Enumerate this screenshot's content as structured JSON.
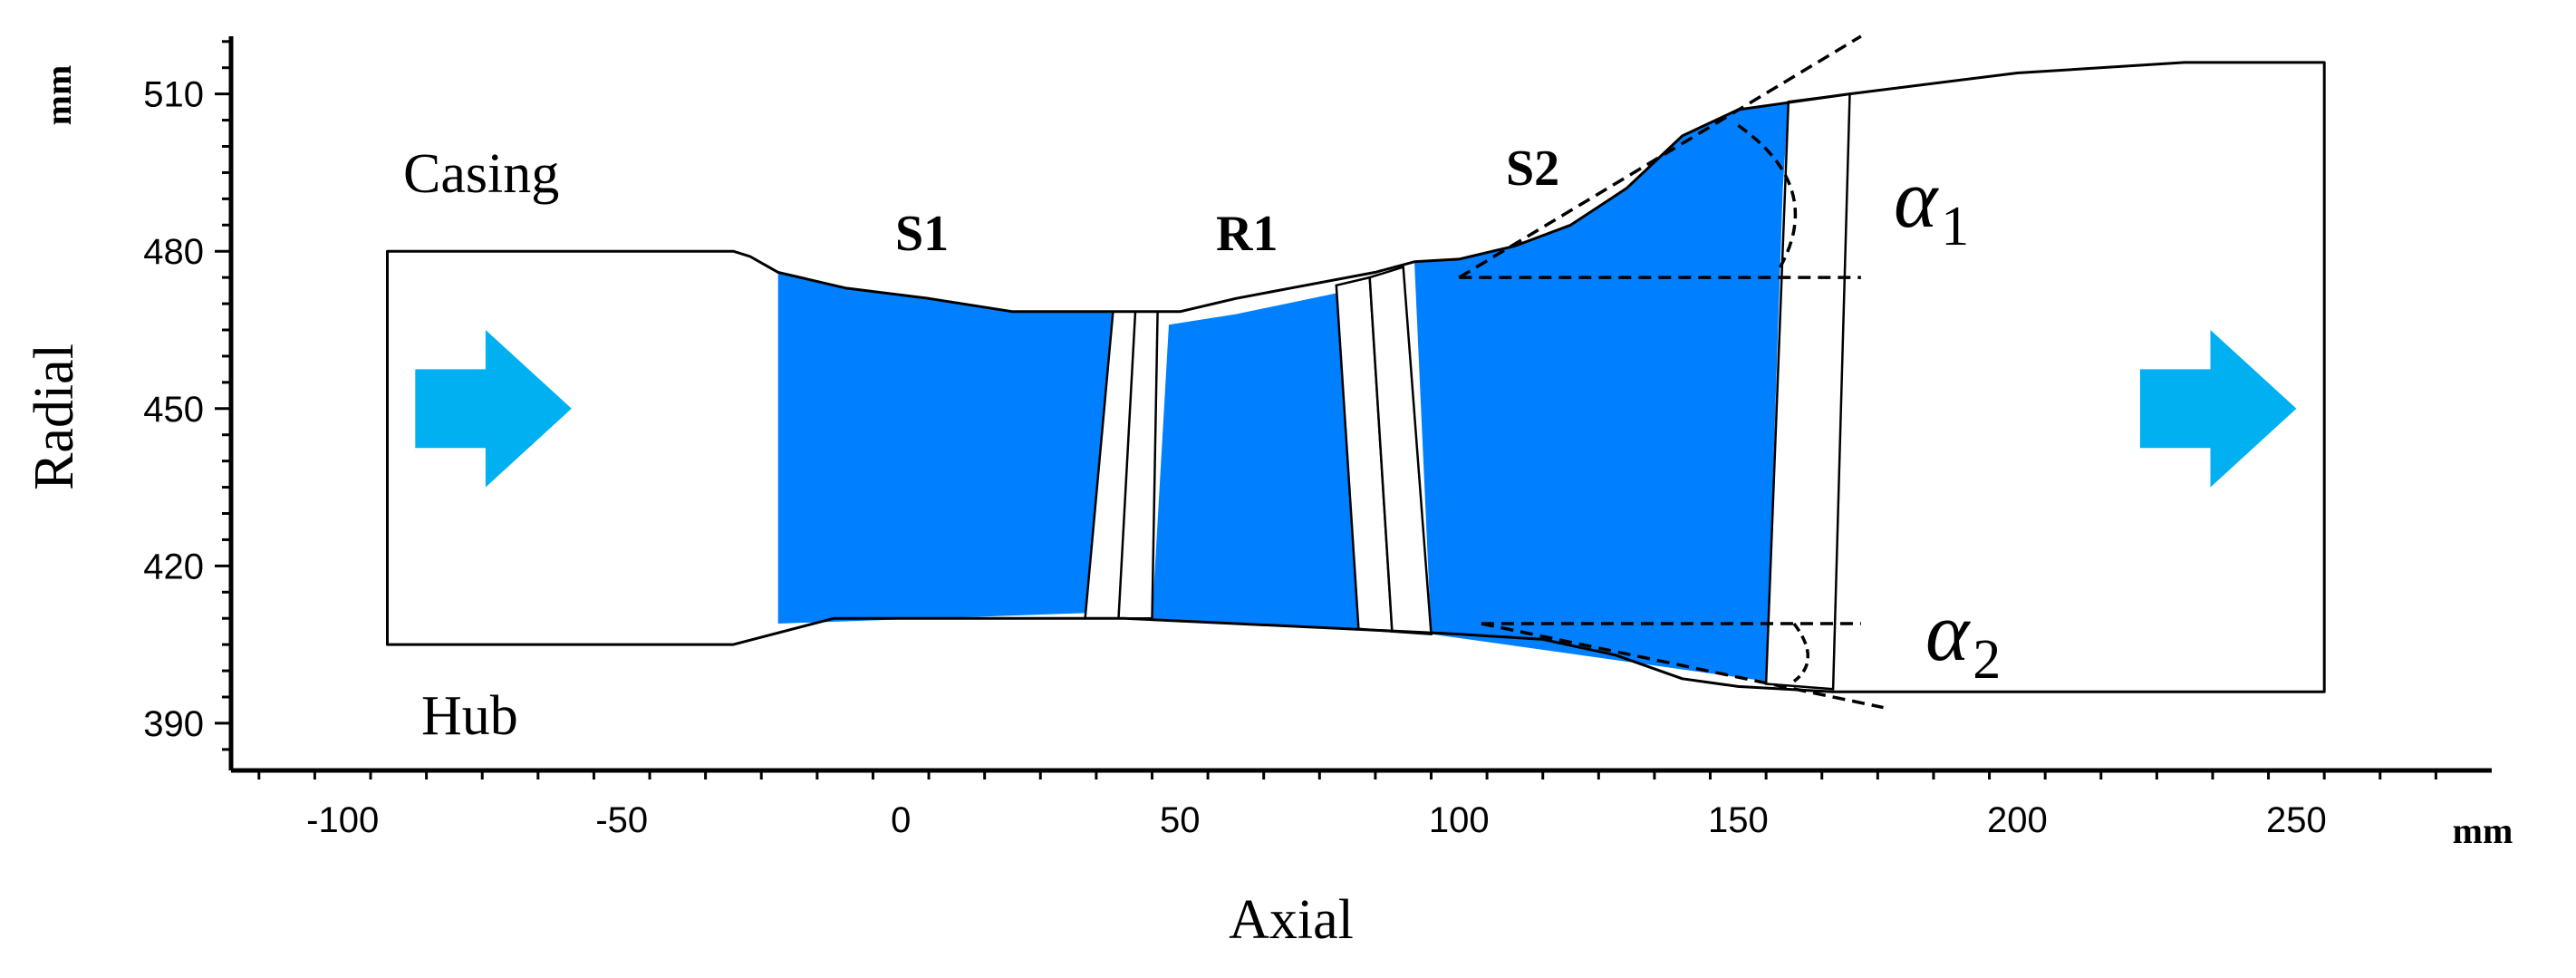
{
  "chart_data": {
    "type": "diagram",
    "xlabel": "Axial",
    "ylabel": "Radial",
    "x_unit": "mm",
    "y_unit": "mm",
    "xlim": [
      -120,
      285
    ],
    "ylim": [
      381,
      521
    ],
    "x_ticks": [
      -100,
      -50,
      0,
      50,
      100,
      150,
      200,
      250
    ],
    "y_ticks": [
      390,
      420,
      450,
      480,
      510
    ],
    "wall_labels": {
      "casing": "Casing",
      "hub": "Hub"
    },
    "region_labels": {
      "s1": "S1",
      "r1": "R1",
      "s2": "S2"
    },
    "angle_labels": {
      "alpha1": "α",
      "alpha1_sub": "1",
      "alpha2": "α",
      "alpha2_sub": "2"
    },
    "casing_line": [
      [
        -92,
        480
      ],
      [
        -30,
        480
      ],
      [
        -27,
        479
      ],
      [
        -22,
        476
      ],
      [
        -10,
        473
      ],
      [
        5,
        471
      ],
      [
        20,
        468.5
      ],
      [
        50,
        468.5
      ],
      [
        60,
        471
      ],
      [
        70,
        473
      ],
      [
        85,
        476
      ],
      [
        92,
        478
      ],
      [
        100,
        478.5
      ],
      [
        110,
        481
      ],
      [
        120,
        485
      ],
      [
        130,
        492
      ],
      [
        140,
        502
      ],
      [
        150,
        507
      ],
      [
        160,
        508.5
      ],
      [
        170,
        510
      ],
      [
        200,
        514
      ],
      [
        230,
        516
      ],
      [
        255,
        516
      ]
    ],
    "hub_line": [
      [
        255,
        396
      ],
      [
        167,
        396
      ],
      [
        150,
        397
      ],
      [
        140,
        398.5
      ],
      [
        128,
        403
      ],
      [
        115,
        406
      ],
      [
        100,
        407
      ],
      [
        80,
        408
      ],
      [
        60,
        409
      ],
      [
        40,
        410
      ],
      [
        -12,
        410
      ],
      [
        -30,
        405
      ],
      [
        -92,
        405
      ]
    ],
    "blue_regions": [
      [
        [
          -22,
          476
        ],
        [
          -10,
          473
        ],
        [
          5,
          471
        ],
        [
          20,
          468.5
        ],
        [
          38,
          468.5
        ],
        [
          33,
          411
        ],
        [
          -22,
          409
        ]
      ],
      [
        [
          48,
          466
        ],
        [
          60,
          468
        ],
        [
          78,
          472
        ],
        [
          82,
          408
        ],
        [
          45,
          410
        ]
      ],
      [
        [
          92,
          478
        ],
        [
          100,
          478.5
        ],
        [
          110,
          481
        ],
        [
          120,
          485
        ],
        [
          130,
          492
        ],
        [
          140,
          502
        ],
        [
          150,
          507
        ],
        [
          159,
          508.5
        ],
        [
          158,
          492
        ],
        [
          155,
          398
        ],
        [
          95,
          407
        ]
      ]
    ],
    "gaps": [
      [
        [
          38,
          468.5
        ],
        [
          43,
          468.5
        ],
        [
          39,
          410
        ],
        [
          33,
          410
        ]
      ],
      [
        [
          42,
          468.5
        ],
        [
          46,
          468.5
        ],
        [
          45,
          410
        ],
        [
          39,
          410
        ]
      ],
      [
        [
          78,
          473.5
        ],
        [
          84,
          475
        ],
        [
          88,
          407.5
        ],
        [
          82,
          408
        ]
      ],
      [
        [
          84,
          475
        ],
        [
          90,
          477
        ],
        [
          95,
          407
        ],
        [
          88,
          407.5
        ]
      ],
      [
        [
          159,
          508.5
        ],
        [
          170,
          510
        ],
        [
          167,
          396.5
        ],
        [
          155,
          397.5
        ]
      ]
    ],
    "dashed_lines": [
      [
        [
          100,
          475
        ],
        [
          172,
          475
        ]
      ],
      [
        [
          100,
          475
        ],
        [
          172,
          521
        ]
      ],
      [
        [
          104,
          409
        ],
        [
          172,
          409
        ]
      ],
      [
        [
          104,
          409
        ],
        [
          176,
          393
        ]
      ]
    ],
    "arrow_shapes": [
      {
        "x": [
          -87,
          -59
        ],
        "y": [
          442,
          458
        ],
        "color": "#00b0f0"
      },
      {
        "x": [
          222,
          250
        ],
        "y": [
          442,
          458
        ],
        "color": "#00b0f0"
      }
    ],
    "colors": {
      "region_fill": "#0080ff",
      "arrow": "#00b0f0",
      "line": "#000000"
    }
  }
}
